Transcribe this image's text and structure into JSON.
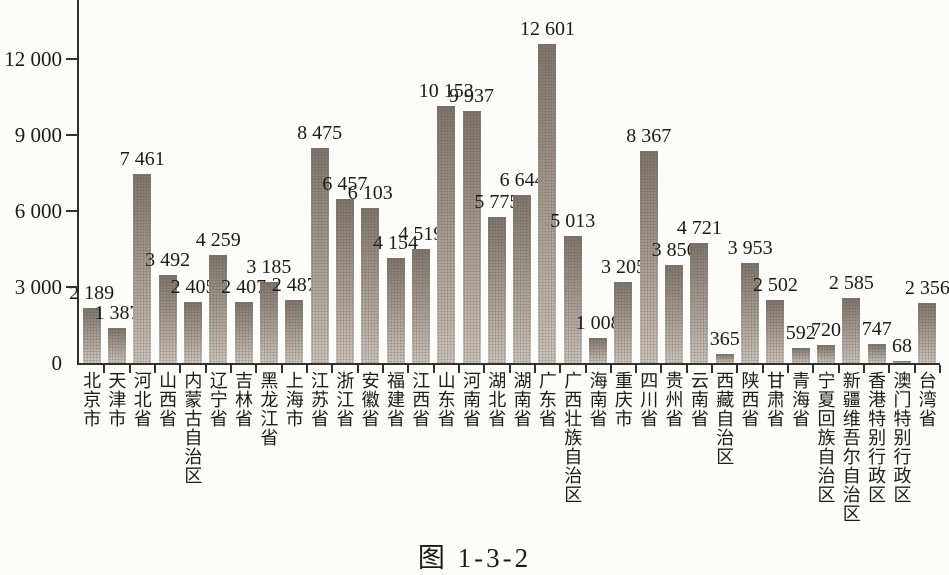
{
  "figure": {
    "caption": "图 1-3-2"
  },
  "chart_data": {
    "type": "bar",
    "title": "图 1-3-2",
    "xlabel": "",
    "ylabel": "",
    "categories": [
      "北京市",
      "天津市",
      "河北省",
      "山西省",
      "内蒙古自治区",
      "辽宁省",
      "吉林省",
      "黑龙江省",
      "上海市",
      "江苏省",
      "浙江省",
      "安徽省",
      "福建省",
      "江西省",
      "山东省",
      "河南省",
      "湖北省",
      "湖南省",
      "广东省",
      "广西壮族自治区",
      "海南省",
      "重庆市",
      "四川省",
      "贵州省",
      "云南省",
      "西藏自治区",
      "陕西省",
      "甘肃省",
      "青海省",
      "宁夏回族自治区",
      "新疆维吾尔自治区",
      "香港特别行政区",
      "澳门特别行政区",
      "台湾省"
    ],
    "values": [
      2189,
      1387,
      7461,
      3492,
      2405,
      4259,
      2407,
      3185,
      2487,
      8475,
      6457,
      6103,
      4154,
      4519,
      10153,
      9937,
      5775,
      6644,
      12601,
      5013,
      1008,
      3205,
      8367,
      3856,
      4721,
      365,
      3953,
      2502,
      592,
      720,
      2585,
      747,
      68,
      2356
    ],
    "value_labels_visible": true,
    "number_format": "space-thousands",
    "yticks": [
      0,
      3000,
      6000,
      9000,
      12000
    ],
    "ylim": [
      0,
      14300
    ],
    "grid": false,
    "legend": "none",
    "bar_color_top": "#837a71",
    "bar_color_bottom": "#d3cdc5",
    "axis_color": "#34312d",
    "text_color": "#1c1b19",
    "background_color": "#fcfcfa"
  }
}
